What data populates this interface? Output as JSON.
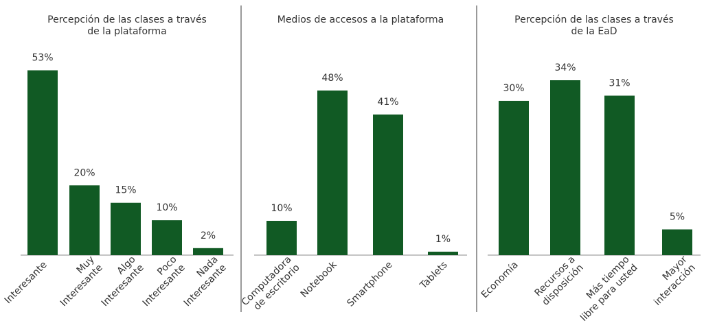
{
  "chart_data": [
    {
      "type": "bar",
      "title": "Percepción de las clases a través\nde la plataforma",
      "categories": [
        "Interesante",
        "Muy\nInteresante",
        "Algo\nInteresante",
        "Poco\nInteresante",
        "Nada\nInteresante"
      ],
      "values": [
        53,
        20,
        15,
        10,
        2
      ],
      "value_labels": [
        "53%",
        "20%",
        "15%",
        "10%",
        "2%"
      ],
      "color": "#115a24",
      "ylim": [
        0,
        59
      ]
    },
    {
      "type": "bar",
      "title": "Medios de accesos a la plataforma",
      "categories": [
        "Computadora\nde escritorio",
        "Notebook",
        "Smartphone",
        "Tablets"
      ],
      "values": [
        10,
        48,
        41,
        1
      ],
      "value_labels": [
        "10%",
        "48%",
        "41%",
        "1%"
      ],
      "color": "#115a24",
      "ylim": [
        0,
        60
      ]
    },
    {
      "type": "bar",
      "title": "Percepción de las clases a través\nde la EaD",
      "categories": [
        "Economía",
        "Recursos a\ndisposición",
        "Más tiempo\nlibre para usted",
        "Mayor\ninteracción"
      ],
      "values": [
        30,
        34,
        31,
        5
      ],
      "value_labels": [
        "30%",
        "34%",
        "31%",
        "5%"
      ],
      "color": "#115a24",
      "ylim": [
        0,
        40
      ]
    }
  ]
}
